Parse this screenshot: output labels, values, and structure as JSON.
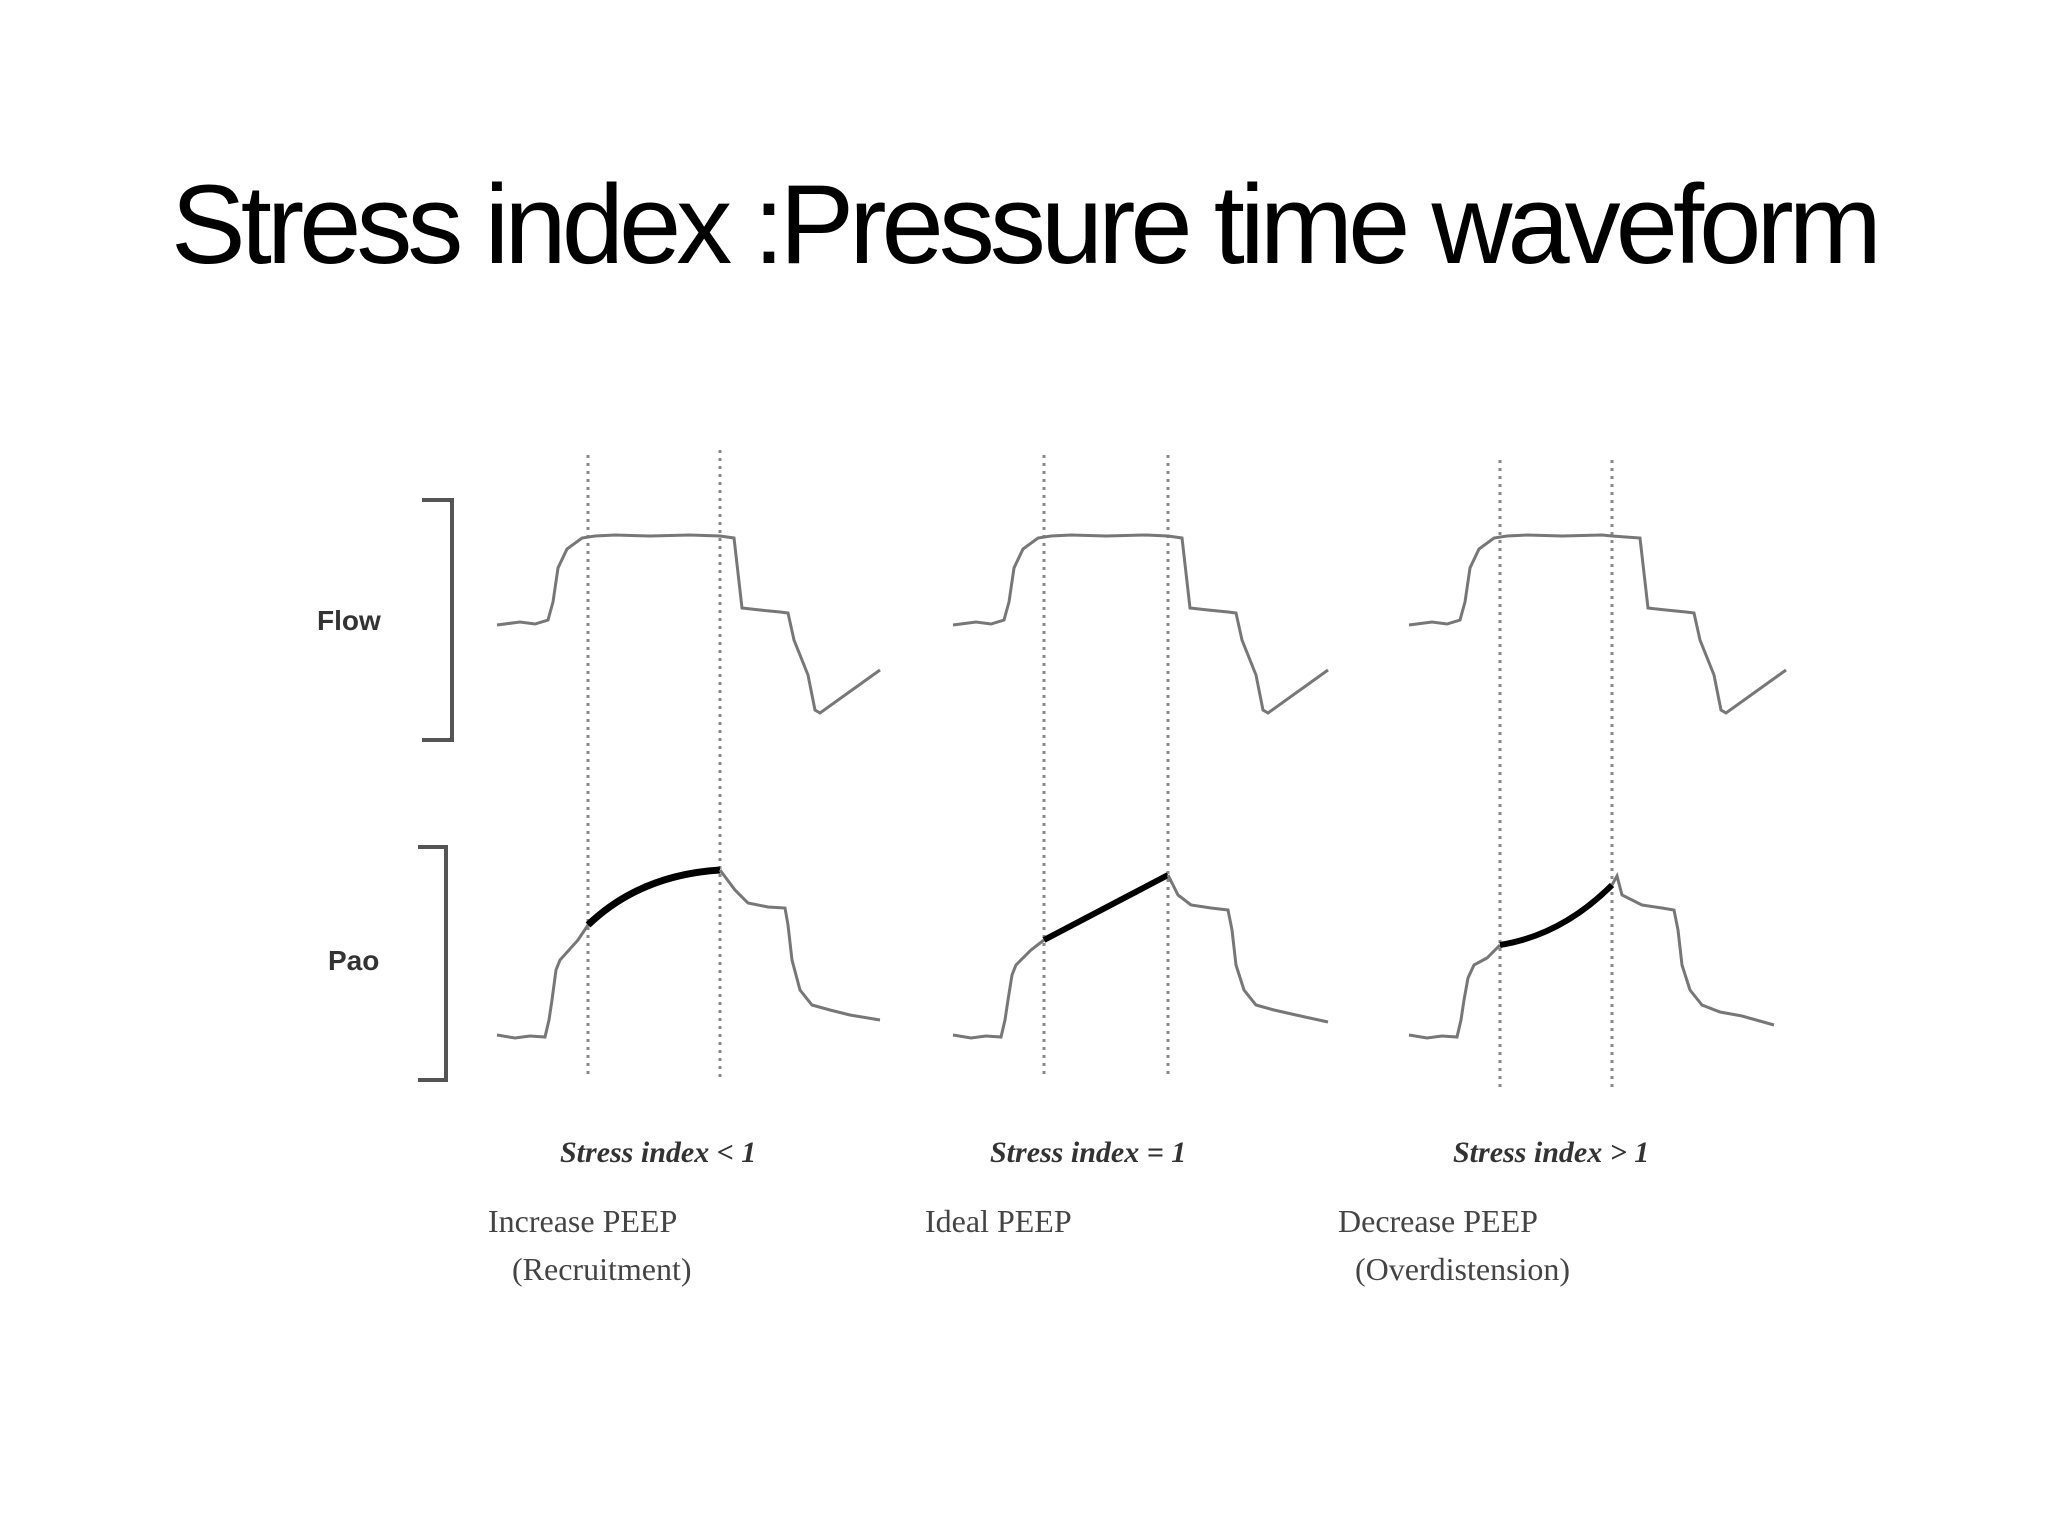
{
  "slide": {
    "title": "Stress index :Pressure time waveform"
  },
  "axes": {
    "flow_label": "Flow",
    "pao_label": "Pao"
  },
  "panels": [
    {
      "stress_index": "Stress index < 1",
      "peep_line1": "Increase PEEP",
      "peep_line2": "(Recruitment)",
      "curve_shape": "concave-down"
    },
    {
      "stress_index": "Stress index = 1",
      "peep_line1": "Ideal PEEP",
      "peep_line2": "",
      "curve_shape": "linear"
    },
    {
      "stress_index": "Stress index > 1",
      "peep_line1": "Decrease PEEP",
      "peep_line2": "(Overdistension)",
      "curve_shape": "concave-up"
    }
  ],
  "colors": {
    "waveform": "#777777",
    "highlight": "#000000",
    "guide": "#888888"
  }
}
